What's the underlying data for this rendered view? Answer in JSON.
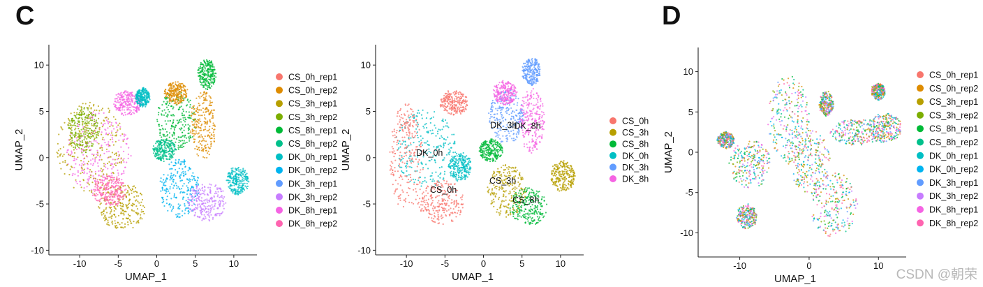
{
  "panel_letters": {
    "c": "C",
    "d": "D"
  },
  "watermark": "CSDN @朝荣",
  "chart_data": [
    {
      "id": "C-left",
      "type": "scatter",
      "title": "",
      "xlabel": "UMAP_1",
      "ylabel": "UMAP_2",
      "xlim": [
        -14,
        13
      ],
      "ylim": [
        -10.5,
        12.2
      ],
      "xticks": [
        -10,
        -5,
        0,
        5,
        10
      ],
      "yticks": [
        -10,
        -5,
        0,
        5,
        10
      ],
      "legend_position": "right",
      "series": [
        {
          "name": "CS_0h_rep1",
          "color": "#F8766D"
        },
        {
          "name": "CS_0h_rep2",
          "color": "#DE8C00"
        },
        {
          "name": "CS_3h_rep1",
          "color": "#B79F00"
        },
        {
          "name": "CS_3h_rep2",
          "color": "#7CAE00"
        },
        {
          "name": "CS_8h_rep1",
          "color": "#00BA38"
        },
        {
          "name": "CS_8h_rep2",
          "color": "#00C08B"
        },
        {
          "name": "DK_0h_rep1",
          "color": "#00BFC4"
        },
        {
          "name": "DK_0h_rep2",
          "color": "#00B4F0"
        },
        {
          "name": "DK_3h_rep1",
          "color": "#619CFF"
        },
        {
          "name": "DK_3h_rep2",
          "color": "#C77CFF"
        },
        {
          "name": "DK_8h_rep1",
          "color": "#F564E3"
        },
        {
          "name": "DK_8h_rep2",
          "color": "#FF64B0"
        }
      ],
      "clusters": [
        {
          "color": "#F564E3",
          "cx": -7.5,
          "cy": 0.5,
          "rx": 4.2,
          "ry": 4.5
        },
        {
          "color": "#B79F00",
          "cx": -8.5,
          "cy": 1.0,
          "rx": 4.5,
          "ry": 5.0
        },
        {
          "color": "#B79F00",
          "cx": -4.5,
          "cy": -5.3,
          "rx": 3.0,
          "ry": 2.6
        },
        {
          "color": "#FF64B0",
          "cx": -6.2,
          "cy": -3.6,
          "rx": 2.2,
          "ry": 1.6
        },
        {
          "color": "#F564E3",
          "cx": -3.8,
          "cy": 5.9,
          "rx": 1.8,
          "ry": 1.3
        },
        {
          "color": "#00BFC4",
          "cx": -1.8,
          "cy": 6.5,
          "rx": 0.9,
          "ry": 1.0
        },
        {
          "color": "#00BA38",
          "cx": 2.5,
          "cy": 4.0,
          "rx": 2.5,
          "ry": 3.2
        },
        {
          "color": "#DE8C00",
          "cx": 6.0,
          "cy": 3.5,
          "rx": 1.6,
          "ry": 3.8
        },
        {
          "color": "#DE8C00",
          "cx": 2.5,
          "cy": 7.0,
          "rx": 1.5,
          "ry": 1.2
        },
        {
          "color": "#00BA38",
          "cx": 6.5,
          "cy": 9.0,
          "rx": 1.2,
          "ry": 1.6
        },
        {
          "color": "#00B4F0",
          "cx": 3.0,
          "cy": -3.3,
          "rx": 2.6,
          "ry": 3.2
        },
        {
          "color": "#C77CFF",
          "cx": 6.5,
          "cy": -4.8,
          "rx": 2.6,
          "ry": 2.0
        },
        {
          "color": "#00BFC4",
          "cx": 10.5,
          "cy": -2.5,
          "rx": 1.4,
          "ry": 1.5
        },
        {
          "color": "#7CAE00",
          "cx": -9.5,
          "cy": 3.0,
          "rx": 2.0,
          "ry": 2.5
        },
        {
          "color": "#00C08B",
          "cx": 1.0,
          "cy": 0.8,
          "rx": 1.5,
          "ry": 1.2
        }
      ]
    },
    {
      "id": "C-right",
      "type": "scatter",
      "title": "",
      "xlabel": "UMAP_1",
      "ylabel": "UMAP_2",
      "xlim": [
        -14,
        13
      ],
      "ylim": [
        -10.5,
        12.2
      ],
      "xticks": [
        -10,
        -5,
        0,
        5,
        10
      ],
      "yticks": [
        -10,
        -5,
        0,
        5,
        10
      ],
      "legend_position": "right",
      "series": [
        {
          "name": "CS_0h",
          "color": "#F8766D"
        },
        {
          "name": "CS_3h",
          "color": "#B79F00"
        },
        {
          "name": "CS_8h",
          "color": "#00BA38"
        },
        {
          "name": "DK_0h",
          "color": "#00BFC4"
        },
        {
          "name": "DK_3h",
          "color": "#619CFF"
        },
        {
          "name": "DK_8h",
          "color": "#F564E3"
        }
      ],
      "annotations": [
        {
          "text": "DK_0h",
          "x": -7.0,
          "y": 0.2
        },
        {
          "text": "CS_0h",
          "x": -5.2,
          "y": -3.8
        },
        {
          "text": "DK_3h",
          "x": 2.6,
          "y": 3.2
        },
        {
          "text": "DK_8h",
          "x": 5.7,
          "y": 3.1
        },
        {
          "text": "CS_3h",
          "x": 2.5,
          "y": -2.8
        },
        {
          "text": "CS_8h",
          "x": 5.5,
          "y": -4.9
        }
      ],
      "clusters": [
        {
          "color": "#00BFC4",
          "cx": -7.5,
          "cy": 1.0,
          "rx": 4.0,
          "ry": 4.2
        },
        {
          "color": "#F8766D",
          "cx": -10.0,
          "cy": 0.0,
          "rx": 2.2,
          "ry": 5.8
        },
        {
          "color": "#F8766D",
          "cx": -5.5,
          "cy": -4.8,
          "rx": 3.0,
          "ry": 2.4
        },
        {
          "color": "#F8766D",
          "cx": -3.8,
          "cy": 5.9,
          "rx": 1.8,
          "ry": 1.3
        },
        {
          "color": "#00BFC4",
          "cx": -3.0,
          "cy": -1.0,
          "rx": 1.5,
          "ry": 1.5
        },
        {
          "color": "#619CFF",
          "cx": 3.0,
          "cy": 4.5,
          "rx": 2.3,
          "ry": 3.0
        },
        {
          "color": "#619CFF",
          "cx": 6.2,
          "cy": 9.3,
          "rx": 1.2,
          "ry": 1.5
        },
        {
          "color": "#F564E3",
          "cx": 6.3,
          "cy": 4.0,
          "rx": 1.6,
          "ry": 3.5
        },
        {
          "color": "#F564E3",
          "cx": 2.8,
          "cy": 7.0,
          "rx": 1.5,
          "ry": 1.3
        },
        {
          "color": "#B79F00",
          "cx": 3.0,
          "cy": -3.6,
          "rx": 2.5,
          "ry": 2.8
        },
        {
          "color": "#00BA38",
          "cx": 5.8,
          "cy": -5.3,
          "rx": 2.4,
          "ry": 2.0
        },
        {
          "color": "#B79F00",
          "cx": 10.3,
          "cy": -2.0,
          "rx": 1.6,
          "ry": 1.6
        },
        {
          "color": "#00BA38",
          "cx": 1.0,
          "cy": 0.8,
          "rx": 1.5,
          "ry": 1.2
        }
      ]
    },
    {
      "id": "D",
      "type": "scatter",
      "title": "",
      "xlabel": "UMAP_1",
      "ylabel": "UMAP_2",
      "xlim": [
        -16,
        14
      ],
      "ylim": [
        -13,
        13
      ],
      "xticks": [
        -10,
        0,
        10
      ],
      "yticks": [
        -10,
        -5,
        0,
        5,
        10
      ],
      "legend_position": "right",
      "series": [
        {
          "name": "CS_0h_rep1",
          "color": "#F8766D"
        },
        {
          "name": "CS_0h_rep2",
          "color": "#DE8C00"
        },
        {
          "name": "CS_3h_rep1",
          "color": "#B79F00"
        },
        {
          "name": "CS_3h_rep2",
          "color": "#7CAE00"
        },
        {
          "name": "CS_8h_rep1",
          "color": "#00BA38"
        },
        {
          "name": "CS_8h_rep2",
          "color": "#00C08B"
        },
        {
          "name": "DK_0h_rep1",
          "color": "#00BFC4"
        },
        {
          "name": "DK_0h_rep2",
          "color": "#00B4F0"
        },
        {
          "name": "DK_3h_rep1",
          "color": "#619CFF"
        },
        {
          "name": "DK_3h_rep2",
          "color": "#C77CFF"
        },
        {
          "name": "DK_8h_rep1",
          "color": "#F564E3"
        },
        {
          "name": "DK_8h_rep2",
          "color": "#FF64B0"
        }
      ],
      "mixed": true,
      "clusters": [
        {
          "cx": -3.0,
          "cy": 4.0,
          "rx": 3.0,
          "ry": 5.5
        },
        {
          "cx": -8.5,
          "cy": -1.5,
          "rx": 3.0,
          "ry": 3.0
        },
        {
          "cx": 0.0,
          "cy": -1.0,
          "rx": 3.0,
          "ry": 4.0
        },
        {
          "cx": 3.5,
          "cy": -6.5,
          "rx": 3.5,
          "ry": 4.0
        },
        {
          "cx": 7.0,
          "cy": 2.5,
          "rx": 4.0,
          "ry": 1.6
        },
        {
          "cx": 11.0,
          "cy": 3.0,
          "rx": 2.3,
          "ry": 1.8
        },
        {
          "cx": 10.0,
          "cy": 7.5,
          "rx": 1.0,
          "ry": 1.0
        },
        {
          "cx": -12.0,
          "cy": 1.5,
          "rx": 1.2,
          "ry": 1.0
        },
        {
          "cx": -9.0,
          "cy": -8.0,
          "rx": 1.5,
          "ry": 1.5
        },
        {
          "cx": 2.5,
          "cy": 6.0,
          "rx": 1.0,
          "ry": 1.5
        }
      ]
    }
  ]
}
